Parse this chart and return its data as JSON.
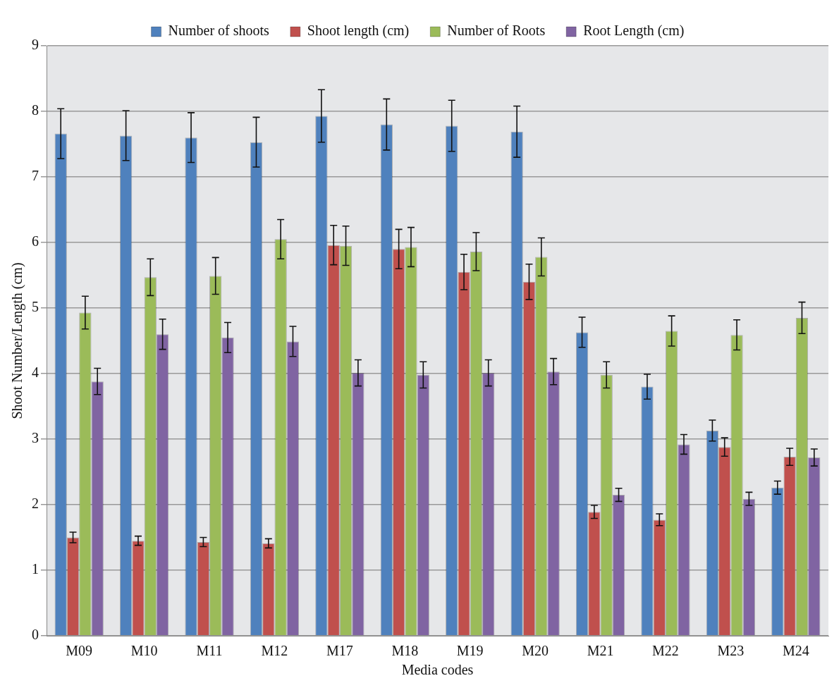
{
  "chart_data": {
    "type": "bar",
    "xlabel": "Media codes",
    "ylabel": "Shoot Number/Length (cm)",
    "categories": [
      "M09",
      "M10",
      "M11",
      "M12",
      "M17",
      "M18",
      "M19",
      "M20",
      "M21",
      "M22",
      "M23",
      "M24"
    ],
    "series": [
      {
        "name": "Number of shoots",
        "color": "#4f81bd",
        "values": [
          7.66,
          7.63,
          7.6,
          7.53,
          7.93,
          7.8,
          7.78,
          7.69,
          4.63,
          3.8,
          3.13,
          2.26
        ],
        "errors": [
          0.38,
          0.38,
          0.38,
          0.38,
          0.4,
          0.39,
          0.39,
          0.39,
          0.23,
          0.19,
          0.16,
          0.1
        ]
      },
      {
        "name": "Shoot length (cm)",
        "color": "#c0504d",
        "values": [
          1.5,
          1.45,
          1.43,
          1.41,
          5.96,
          5.9,
          5.55,
          5.4,
          1.89,
          1.77,
          2.88,
          2.73
        ],
        "errors": [
          0.08,
          0.07,
          0.07,
          0.07,
          0.3,
          0.3,
          0.27,
          0.27,
          0.1,
          0.09,
          0.14,
          0.13
        ]
      },
      {
        "name": "Number of Roots",
        "color": "#9bbb59",
        "values": [
          4.93,
          5.47,
          5.49,
          6.05,
          5.95,
          5.93,
          5.86,
          5.78,
          3.98,
          4.65,
          4.59,
          4.85
        ],
        "errors": [
          0.25,
          0.28,
          0.28,
          0.3,
          0.3,
          0.3,
          0.29,
          0.29,
          0.2,
          0.23,
          0.23,
          0.24
        ]
      },
      {
        "name": "Root Length (cm)",
        "color": "#8064a2",
        "values": [
          3.88,
          4.6,
          4.55,
          4.49,
          4.01,
          3.98,
          4.01,
          4.03,
          2.15,
          2.92,
          2.09,
          2.72
        ],
        "errors": [
          0.2,
          0.23,
          0.23,
          0.23,
          0.2,
          0.2,
          0.2,
          0.2,
          0.1,
          0.15,
          0.1,
          0.13
        ]
      }
    ],
    "ylim": [
      0,
      9
    ],
    "yticks": [
      0,
      1,
      2,
      3,
      4,
      5,
      6,
      7,
      8,
      9
    ],
    "grid": "y",
    "legend": "top"
  }
}
